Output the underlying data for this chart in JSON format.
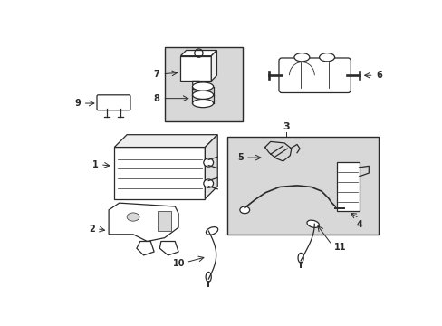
{
  "bg": "#ffffff",
  "lc": "#2a2a2a",
  "box_fill": "#d8d8d8",
  "lw": 0.9,
  "fig_w": 4.89,
  "fig_h": 3.6,
  "dpi": 100
}
